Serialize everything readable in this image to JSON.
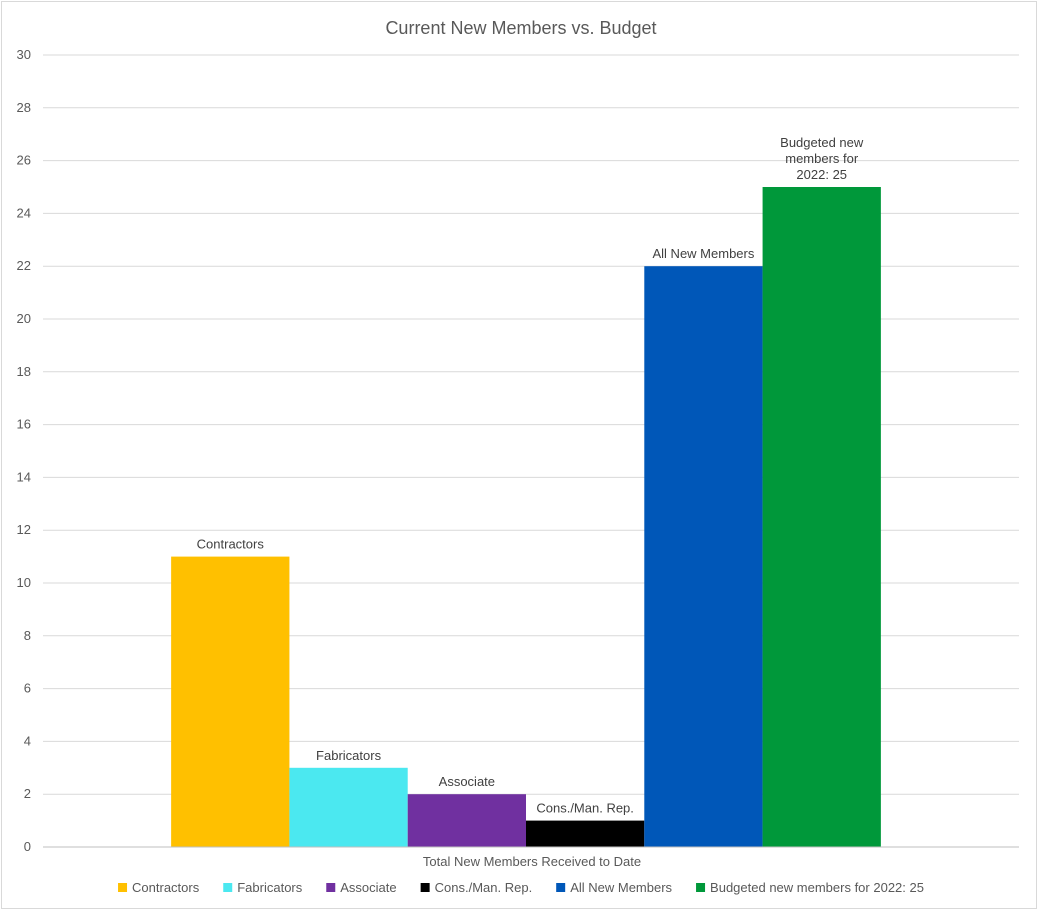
{
  "chart_data": {
    "type": "bar",
    "title": "Current New Members vs. Budget",
    "xlabel": "Total New Members Received to Date",
    "ylabel": "",
    "ylim": [
      0,
      30
    ],
    "ytick_step": 2,
    "grid": true,
    "legend_position": "bottom",
    "categories": [
      "Total New Members Received to Date"
    ],
    "series": [
      {
        "name": "Contractors",
        "values": [
          11
        ],
        "color": "#FFC000",
        "label_lines": [
          "Contractors"
        ]
      },
      {
        "name": "Fabricators",
        "values": [
          3
        ],
        "color": "#4BE8F0",
        "label_lines": [
          "Fabricators"
        ]
      },
      {
        "name": "Associate",
        "values": [
          2
        ],
        "color": "#7030A0",
        "label_lines": [
          "Associate"
        ]
      },
      {
        "name": "Cons./Man. Rep.",
        "values": [
          1
        ],
        "color": "#000000",
        "label_lines": [
          "Cons./Man. Rep."
        ]
      },
      {
        "name": "All New Members",
        "values": [
          22
        ],
        "color": "#0057B8",
        "label_lines": [
          "All New Members"
        ]
      },
      {
        "name": "Budgeted new members for 2022: 25",
        "values": [
          25
        ],
        "color": "#00983A",
        "label_lines": [
          "Budgeted new",
          "members for",
          "2022: 25"
        ]
      }
    ]
  }
}
